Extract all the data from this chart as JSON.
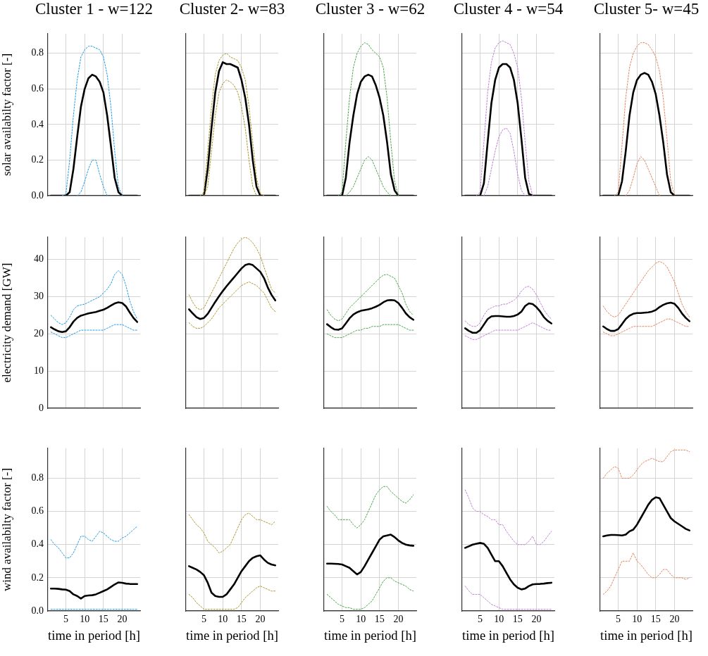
{
  "chart_data": [
    {
      "type": "line",
      "title": "Cluster 1 - w=122",
      "ylabel": "solar availabilty factor [-]",
      "x": [
        1,
        2,
        3,
        4,
        5,
        6,
        7,
        8,
        9,
        10,
        11,
        12,
        13,
        14,
        15,
        16,
        17,
        18,
        19,
        20,
        21,
        22,
        23,
        24
      ],
      "xlim": [
        0.2,
        24.8
      ],
      "xticks": [
        5,
        10,
        15,
        20
      ],
      "ylim": [
        0,
        0.91
      ],
      "yticks": [
        {
          "value": 0,
          "label": "0.0"
        },
        0.2,
        0.4,
        0.6,
        0.8
      ],
      "grid": true,
      "tick_labels": "y",
      "marker": "none",
      "series": [
        {
          "color": "#1e9be9",
          "line_style": "dotted",
          "values": [
            null,
            null,
            null,
            0,
            0.01,
            0.2,
            0.45,
            0.65,
            0.78,
            0.82,
            0.84,
            0.84,
            0.83,
            0.82,
            0.78,
            0.68,
            0.5,
            0.25,
            0.05,
            0,
            null,
            null,
            null,
            null
          ]
        },
        {
          "color": "#1e9be9",
          "line_style": "dotted",
          "values": [
            null,
            null,
            null,
            null,
            null,
            null,
            null,
            0,
            0.02,
            0.08,
            0.15,
            0.2,
            0.2,
            0.12,
            0.05,
            0,
            null,
            null,
            null,
            null,
            null,
            null,
            null,
            null
          ]
        },
        {
          "color": "#000000",
          "line_style": "solid",
          "values": [
            0,
            0,
            0,
            0,
            0,
            0.02,
            0.15,
            0.33,
            0.5,
            0.6,
            0.66,
            0.68,
            0.67,
            0.64,
            0.58,
            0.45,
            0.28,
            0.1,
            0.02,
            0,
            0,
            0,
            0,
            0
          ]
        }
      ]
    },
    {
      "type": "line",
      "title": "Cluster 2- w=83",
      "x": [
        1,
        2,
        3,
        4,
        5,
        6,
        7,
        8,
        9,
        10,
        11,
        12,
        13,
        14,
        15,
        16,
        17,
        18,
        19,
        20,
        21,
        22,
        23,
        24
      ],
      "xlim": [
        0.2,
        24.8
      ],
      "xticks": [
        5,
        10,
        15,
        20
      ],
      "ylim": [
        0,
        0.91
      ],
      "yticks": [
        0,
        0.2,
        0.4,
        0.6,
        0.8
      ],
      "grid": true,
      "tick_labels": false,
      "marker": "none",
      "series": [
        {
          "color": "#b0962a",
          "line_style": "dotted",
          "values": [
            null,
            null,
            null,
            0,
            0.02,
            0.25,
            0.5,
            0.68,
            0.76,
            0.79,
            0.8,
            0.78,
            0.77,
            0.76,
            0.72,
            0.65,
            0.5,
            0.3,
            0.1,
            0.01,
            0,
            null,
            null,
            null
          ]
        },
        {
          "color": "#b0962a",
          "line_style": "dotted",
          "values": [
            null,
            null,
            null,
            null,
            0,
            0.05,
            0.25,
            0.45,
            0.58,
            0.63,
            0.65,
            0.64,
            0.62,
            0.58,
            0.5,
            0.38,
            0.2,
            0.05,
            0,
            null,
            null,
            null,
            null,
            null
          ]
        },
        {
          "color": "#000000",
          "line_style": "solid",
          "values": [
            0,
            0,
            0,
            0,
            0,
            0.15,
            0.38,
            0.58,
            0.7,
            0.75,
            0.74,
            0.74,
            0.73,
            0.72,
            0.65,
            0.55,
            0.4,
            0.2,
            0.05,
            0,
            0,
            0,
            0,
            0
          ]
        }
      ]
    },
    {
      "type": "line",
      "title": "Cluster 3 - w=62",
      "x": [
        1,
        2,
        3,
        4,
        5,
        6,
        7,
        8,
        9,
        10,
        11,
        12,
        13,
        14,
        15,
        16,
        17,
        18,
        19,
        20,
        21,
        22,
        23,
        24
      ],
      "xlim": [
        0.2,
        24.8
      ],
      "xticks": [
        5,
        10,
        15,
        20
      ],
      "ylim": [
        0,
        0.91
      ],
      "yticks": [
        0,
        0.2,
        0.4,
        0.6,
        0.8
      ],
      "grid": true,
      "tick_labels": false,
      "marker": "none",
      "series": [
        {
          "color": "#4aa64a",
          "line_style": "dotted",
          "values": [
            null,
            null,
            null,
            0,
            0.02,
            0.3,
            0.55,
            0.72,
            0.8,
            0.84,
            0.86,
            0.85,
            0.82,
            0.8,
            0.78,
            0.72,
            0.55,
            0.3,
            0.08,
            0,
            null,
            null,
            null,
            null
          ]
        },
        {
          "color": "#4aa64a",
          "line_style": "dotted",
          "values": [
            null,
            null,
            null,
            null,
            null,
            0,
            0.02,
            0.05,
            0.1,
            0.15,
            0.2,
            0.22,
            0.2,
            0.15,
            0.1,
            0.05,
            0.02,
            0,
            null,
            null,
            null,
            null,
            null,
            null
          ]
        },
        {
          "color": "#000000",
          "line_style": "solid",
          "values": [
            0,
            0,
            0,
            0,
            0,
            0.1,
            0.3,
            0.45,
            0.57,
            0.64,
            0.67,
            0.68,
            0.67,
            0.62,
            0.55,
            0.45,
            0.3,
            0.12,
            0.03,
            0,
            0,
            0,
            0,
            0
          ]
        }
      ]
    },
    {
      "type": "line",
      "title": "Cluster 4 - w=54",
      "x": [
        1,
        2,
        3,
        4,
        5,
        6,
        7,
        8,
        9,
        10,
        11,
        12,
        13,
        14,
        15,
        16,
        17,
        18,
        19,
        20,
        21,
        22,
        23,
        24
      ],
      "xlim": [
        0.2,
        24.8
      ],
      "xticks": [
        5,
        10,
        15,
        20
      ],
      "ylim": [
        0,
        0.91
      ],
      "yticks": [
        0,
        0.2,
        0.4,
        0.6,
        0.8
      ],
      "grid": true,
      "tick_labels": false,
      "marker": "none",
      "series": [
        {
          "color": "#c07ed8",
          "line_style": "dotted",
          "values": [
            null,
            null,
            null,
            0,
            0.02,
            0.3,
            0.58,
            0.75,
            0.83,
            0.86,
            0.87,
            0.86,
            0.85,
            0.8,
            0.72,
            0.55,
            0.3,
            0.08,
            0,
            null,
            null,
            null,
            null,
            null
          ]
        },
        {
          "color": "#c07ed8",
          "line_style": "dotted",
          "values": [
            null,
            null,
            null,
            null,
            null,
            0,
            0.05,
            0.15,
            0.25,
            0.33,
            0.37,
            0.38,
            0.35,
            0.25,
            0.12,
            0.03,
            0,
            null,
            null,
            null,
            null,
            null,
            null,
            null
          ]
        },
        {
          "color": "#000000",
          "line_style": "solid",
          "values": [
            0,
            0,
            0,
            0,
            0,
            0.07,
            0.3,
            0.52,
            0.65,
            0.72,
            0.74,
            0.74,
            0.72,
            0.65,
            0.52,
            0.32,
            0.1,
            0.01,
            0,
            0,
            0,
            0,
            0,
            0
          ]
        }
      ]
    },
    {
      "type": "line",
      "title": "Cluster 5- w=45",
      "x": [
        1,
        2,
        3,
        4,
        5,
        6,
        7,
        8,
        9,
        10,
        11,
        12,
        13,
        14,
        15,
        16,
        17,
        18,
        19,
        20,
        21,
        22,
        23,
        24
      ],
      "xlim": [
        0.2,
        24.8
      ],
      "xticks": [
        5,
        10,
        15,
        20
      ],
      "ylim": [
        0,
        0.91
      ],
      "yticks": [
        0,
        0.2,
        0.4,
        0.6,
        0.8
      ],
      "grid": true,
      "tick_labels": false,
      "marker": "none",
      "series": [
        {
          "color": "#e8825a",
          "line_style": "dotted",
          "values": [
            null,
            null,
            null,
            0,
            0.02,
            0.28,
            0.55,
            0.72,
            0.8,
            0.84,
            0.86,
            0.86,
            0.85,
            0.82,
            0.78,
            0.7,
            0.55,
            0.32,
            0.08,
            0,
            null,
            null,
            null,
            null
          ]
        },
        {
          "color": "#e8825a",
          "line_style": "dotted",
          "values": [
            null,
            null,
            null,
            null,
            null,
            null,
            0,
            0.03,
            0.1,
            0.18,
            0.22,
            0.2,
            0.15,
            0.1,
            0.05,
            0,
            null,
            null,
            null,
            null,
            null,
            null,
            null,
            null
          ]
        },
        {
          "color": "#000000",
          "line_style": "solid",
          "values": [
            0,
            0,
            0,
            0,
            0,
            0.08,
            0.25,
            0.45,
            0.58,
            0.65,
            0.68,
            0.69,
            0.68,
            0.64,
            0.57,
            0.45,
            0.3,
            0.12,
            0.02,
            0,
            0,
            0,
            0,
            0
          ]
        }
      ]
    },
    {
      "type": "line",
      "ylabel": "electricity demand [GW]",
      "x": [
        1,
        2,
        3,
        4,
        5,
        6,
        7,
        8,
        9,
        10,
        11,
        12,
        13,
        14,
        15,
        16,
        17,
        18,
        19,
        20,
        21,
        22,
        23,
        24
      ],
      "xlim": [
        0.2,
        24.8
      ],
      "xticks": [
        5,
        10,
        15,
        20
      ],
      "ylim": [
        0,
        46
      ],
      "yticks": [
        0,
        10,
        20,
        30,
        40
      ],
      "grid": true,
      "tick_labels": "y",
      "marker": "none",
      "series": [
        {
          "color": "#1e9be9",
          "line_style": "dotted",
          "values": [
            25,
            24,
            23,
            22.5,
            23,
            24.5,
            26.5,
            27.5,
            27.8,
            28,
            28.5,
            29,
            29.5,
            30,
            31,
            32,
            33.5,
            36,
            37,
            36,
            33,
            29,
            26,
            24
          ]
        },
        {
          "color": "#1e9be9",
          "line_style": "dotted",
          "values": [
            20.5,
            20,
            19.5,
            19,
            19,
            19.5,
            20,
            20.5,
            21,
            21,
            21,
            21,
            21,
            21,
            21,
            21.5,
            22,
            22.5,
            22.5,
            22.5,
            22,
            21.5,
            21,
            21
          ]
        },
        {
          "color": "#000000",
          "line_style": "solid",
          "values": [
            21.8,
            21.2,
            20.7,
            20.5,
            20.7,
            21.8,
            23.3,
            24.3,
            24.9,
            25.2,
            25.5,
            25.7,
            25.9,
            26.2,
            26.5,
            27,
            27.6,
            28.2,
            28.5,
            28.3,
            27.4,
            25.8,
            24.3,
            23.2
          ]
        }
      ]
    },
    {
      "type": "line",
      "x": [
        1,
        2,
        3,
        4,
        5,
        6,
        7,
        8,
        9,
        10,
        11,
        12,
        13,
        14,
        15,
        16,
        17,
        18,
        19,
        20,
        21,
        22,
        23,
        24
      ],
      "xlim": [
        0.2,
        24.8
      ],
      "xticks": [
        5,
        10,
        15,
        20
      ],
      "ylim": [
        0,
        46
      ],
      "yticks": [
        0,
        10,
        20,
        30,
        40
      ],
      "grid": true,
      "tick_labels": false,
      "marker": "none",
      "series": [
        {
          "color": "#b0962a",
          "line_style": "dotted",
          "values": [
            30.5,
            28.5,
            27,
            26.5,
            27,
            29,
            31,
            33,
            35,
            37,
            39,
            41,
            43,
            44.5,
            45.5,
            46,
            45.5,
            44.5,
            43,
            41,
            38,
            35,
            32,
            31
          ]
        },
        {
          "color": "#b0962a",
          "line_style": "dotted",
          "values": [
            23,
            22,
            21.5,
            21.5,
            22,
            23,
            24,
            25.5,
            27,
            28,
            29,
            30,
            31,
            32,
            33,
            33.5,
            34,
            33.5,
            33,
            32,
            31,
            29,
            27,
            26
          ]
        },
        {
          "color": "#000000",
          "line_style": "solid",
          "values": [
            26.6,
            25.5,
            24.5,
            24,
            24.3,
            25.4,
            27,
            28.6,
            30.1,
            31.5,
            32.8,
            34,
            35.2,
            36.4,
            37.6,
            38.5,
            38.8,
            38.5,
            37.6,
            36.7,
            35,
            32.5,
            30.5,
            29
          ]
        }
      ]
    },
    {
      "type": "line",
      "x": [
        1,
        2,
        3,
        4,
        5,
        6,
        7,
        8,
        9,
        10,
        11,
        12,
        13,
        14,
        15,
        16,
        17,
        18,
        19,
        20,
        21,
        22,
        23,
        24
      ],
      "xlim": [
        0.2,
        24.8
      ],
      "xticks": [
        5,
        10,
        15,
        20
      ],
      "ylim": [
        0,
        46
      ],
      "yticks": [
        0,
        10,
        20,
        30,
        40
      ],
      "grid": true,
      "tick_labels": false,
      "marker": "none",
      "series": [
        {
          "color": "#4aa64a",
          "line_style": "dotted",
          "values": [
            26.5,
            25,
            24,
            23.5,
            24,
            25.5,
            27,
            28,
            29,
            30,
            31,
            32,
            33,
            34,
            35,
            35.8,
            36,
            35.5,
            35,
            33,
            31,
            28,
            26,
            25
          ]
        },
        {
          "color": "#4aa64a",
          "line_style": "dotted",
          "values": [
            20,
            19.5,
            19,
            19,
            19,
            19.5,
            20,
            20.5,
            21,
            21,
            21.5,
            21.5,
            22,
            22,
            22,
            22.5,
            22.5,
            22.5,
            22.5,
            22.5,
            22,
            21.5,
            21,
            21
          ]
        },
        {
          "color": "#000000",
          "line_style": "solid",
          "values": [
            22.6,
            21.8,
            21.2,
            21.1,
            21.5,
            22.8,
            24.2,
            25.2,
            25.8,
            26.2,
            26.4,
            26.6,
            26.9,
            27.3,
            27.8,
            28.5,
            29,
            29.1,
            29,
            28.3,
            27,
            25.5,
            24.5,
            23.8
          ]
        }
      ]
    },
    {
      "type": "line",
      "x": [
        1,
        2,
        3,
        4,
        5,
        6,
        7,
        8,
        9,
        10,
        11,
        12,
        13,
        14,
        15,
        16,
        17,
        18,
        19,
        20,
        21,
        22,
        23,
        24
      ],
      "xlim": [
        0.2,
        24.8
      ],
      "xticks": [
        5,
        10,
        15,
        20
      ],
      "ylim": [
        0,
        46
      ],
      "yticks": [
        0,
        10,
        20,
        30,
        40
      ],
      "grid": true,
      "tick_labels": false,
      "marker": "none",
      "series": [
        {
          "color": "#c07ed8",
          "line_style": "dotted",
          "values": [
            23.5,
            22.5,
            22,
            22,
            23,
            25,
            26.5,
            27,
            27.5,
            27.5,
            28,
            28,
            28.5,
            29,
            30,
            31.5,
            32.5,
            32.8,
            32,
            30.5,
            28.5,
            26.5,
            25,
            24
          ]
        },
        {
          "color": "#c07ed8",
          "line_style": "dotted",
          "values": [
            19.5,
            19,
            18.5,
            18.5,
            19,
            19.5,
            20,
            20.5,
            21,
            21,
            21,
            21,
            21,
            21,
            21,
            21.5,
            22,
            22.5,
            23,
            22.5,
            22,
            21.5,
            21,
            21
          ]
        },
        {
          "color": "#000000",
          "line_style": "solid",
          "values": [
            21.5,
            20.8,
            20.3,
            20.3,
            21,
            22.5,
            24,
            24.7,
            24.8,
            24.8,
            24.7,
            24.6,
            24.6,
            24.8,
            25.2,
            26,
            27.5,
            28.2,
            28,
            27.2,
            26,
            24.5,
            23.5,
            22.8
          ]
        }
      ]
    },
    {
      "type": "line",
      "x": [
        1,
        2,
        3,
        4,
        5,
        6,
        7,
        8,
        9,
        10,
        11,
        12,
        13,
        14,
        15,
        16,
        17,
        18,
        19,
        20,
        21,
        22,
        23,
        24
      ],
      "xlim": [
        0.2,
        24.8
      ],
      "xticks": [
        5,
        10,
        15,
        20
      ],
      "ylim": [
        0,
        46
      ],
      "yticks": [
        0,
        10,
        20,
        30,
        40
      ],
      "grid": true,
      "tick_labels": false,
      "marker": "none",
      "series": [
        {
          "color": "#e8825a",
          "line_style": "dotted",
          "values": [
            27.5,
            26,
            25,
            24.5,
            25,
            26.5,
            28,
            29.5,
            31,
            32.5,
            34,
            35.5,
            37,
            38,
            39,
            39.5,
            39,
            38,
            36,
            34,
            31,
            28,
            26,
            24.5
          ]
        },
        {
          "color": "#e8825a",
          "line_style": "dotted",
          "values": [
            20.5,
            20,
            19.5,
            19.5,
            20,
            20.5,
            21,
            21.5,
            22,
            22,
            22,
            22,
            22,
            22,
            22.5,
            23,
            23.5,
            24,
            24,
            23.5,
            23,
            22.5,
            22,
            22
          ]
        },
        {
          "color": "#000000",
          "line_style": "solid",
          "values": [
            22,
            21.3,
            20.8,
            20.8,
            21.3,
            22.6,
            24,
            24.9,
            25.4,
            25.6,
            25.6,
            25.7,
            25.8,
            26,
            26.4,
            27.2,
            27.8,
            28.2,
            28.4,
            28.1,
            27,
            25.5,
            24.3,
            23.4
          ]
        }
      ]
    },
    {
      "type": "line",
      "ylabel": "wind availabilty factor [-]",
      "xlabel": "time in period [h]",
      "x": [
        1,
        2,
        3,
        4,
        5,
        6,
        7,
        8,
        9,
        10,
        11,
        12,
        13,
        14,
        15,
        16,
        17,
        18,
        19,
        20,
        21,
        22,
        23,
        24
      ],
      "xlim": [
        0.2,
        24.8
      ],
      "xticks": [
        5,
        10,
        15,
        20
      ],
      "ylim": [
        0,
        0.98
      ],
      "yticks": [
        {
          "value": 0,
          "label": "0.0"
        },
        0.2,
        0.4,
        0.6,
        0.8
      ],
      "grid": true,
      "marker": "none",
      "series": [
        {
          "color": "#1e9be9",
          "line_style": "dotted",
          "values": [
            0.43,
            0.4,
            0.38,
            0.35,
            0.32,
            0.32,
            0.35,
            0.4,
            0.45,
            0.45,
            0.43,
            0.42,
            0.45,
            0.48,
            0.47,
            0.45,
            0.43,
            0.42,
            0.42,
            0.44,
            0.45,
            0.47,
            0.49,
            0.51
          ]
        },
        {
          "color": "#1e9be9",
          "line_style": "dotted",
          "values": [
            0.01,
            0.01,
            0.01,
            0.01,
            0.01,
            0.01,
            0.01,
            0.01,
            0.01,
            0.01,
            0.01,
            0.01,
            0.01,
            0.01,
            0.01,
            0.01,
            0.01,
            0.01,
            0.01,
            0.01,
            0.01,
            0.01,
            0.01,
            0.01
          ]
        },
        {
          "color": "#000000",
          "line_style": "solid",
          "values": [
            0.135,
            0.135,
            0.133,
            0.13,
            0.128,
            0.12,
            0.1,
            0.09,
            0.075,
            0.09,
            0.093,
            0.095,
            0.1,
            0.11,
            0.12,
            0.13,
            0.145,
            0.16,
            0.172,
            0.17,
            0.165,
            0.163,
            0.162,
            0.162
          ]
        }
      ]
    },
    {
      "type": "line",
      "xlabel": "time in period [h]",
      "x": [
        1,
        2,
        3,
        4,
        5,
        6,
        7,
        8,
        9,
        10,
        11,
        12,
        13,
        14,
        15,
        16,
        17,
        18,
        19,
        20,
        21,
        22,
        23,
        24
      ],
      "xlim": [
        0.2,
        24.8
      ],
      "xticks": [
        5,
        10,
        15,
        20
      ],
      "ylim": [
        0,
        0.98
      ],
      "yticks": [
        0,
        0.2,
        0.4,
        0.6,
        0.8
      ],
      "grid": true,
      "tick_labels": "x",
      "marker": "none",
      "series": [
        {
          "color": "#b0962a",
          "line_style": "dotted",
          "values": [
            0.58,
            0.55,
            0.52,
            0.5,
            0.47,
            0.42,
            0.4,
            0.38,
            0.35,
            0.36,
            0.38,
            0.4,
            0.45,
            0.5,
            0.55,
            0.58,
            0.59,
            0.57,
            0.55,
            0.55,
            0.54,
            0.53,
            0.52,
            0.54
          ]
        },
        {
          "color": "#b0962a",
          "line_style": "dotted",
          "values": [
            0.1,
            0.08,
            0.05,
            0.03,
            0.01,
            0.01,
            0.01,
            0.01,
            0.01,
            0.01,
            0.01,
            0.01,
            0.01,
            0.02,
            0.05,
            0.08,
            0.1,
            0.12,
            0.14,
            0.15,
            0.14,
            0.13,
            0.12,
            0.12
          ]
        },
        {
          "color": "#000000",
          "line_style": "solid",
          "values": [
            0.27,
            0.26,
            0.25,
            0.235,
            0.215,
            0.17,
            0.11,
            0.09,
            0.085,
            0.085,
            0.1,
            0.13,
            0.16,
            0.2,
            0.24,
            0.27,
            0.3,
            0.32,
            0.33,
            0.335,
            0.31,
            0.29,
            0.28,
            0.275
          ]
        }
      ]
    },
    {
      "type": "line",
      "xlabel": "time in period [h]",
      "x": [
        1,
        2,
        3,
        4,
        5,
        6,
        7,
        8,
        9,
        10,
        11,
        12,
        13,
        14,
        15,
        16,
        17,
        18,
        19,
        20,
        21,
        22,
        23,
        24
      ],
      "xlim": [
        0.2,
        24.8
      ],
      "xticks": [
        5,
        10,
        15,
        20
      ],
      "ylim": [
        0,
        0.98
      ],
      "yticks": [
        0,
        0.2,
        0.4,
        0.6,
        0.8
      ],
      "grid": true,
      "tick_labels": "x",
      "marker": "none",
      "series": [
        {
          "color": "#4aa64a",
          "line_style": "dotted",
          "values": [
            0.63,
            0.6,
            0.58,
            0.55,
            0.55,
            0.55,
            0.55,
            0.52,
            0.5,
            0.52,
            0.55,
            0.6,
            0.65,
            0.7,
            0.73,
            0.75,
            0.75,
            0.72,
            0.7,
            0.68,
            0.66,
            0.65,
            0.67,
            0.7
          ]
        },
        {
          "color": "#4aa64a",
          "line_style": "dotted",
          "values": [
            0.1,
            0.08,
            0.06,
            0.04,
            0.03,
            0.02,
            0.02,
            0.01,
            0.01,
            0.01,
            0.02,
            0.04,
            0.06,
            0.1,
            0.14,
            0.18,
            0.2,
            0.2,
            0.18,
            0.17,
            0.16,
            0.15,
            0.13,
            0.12
          ]
        },
        {
          "color": "#000000",
          "line_style": "solid",
          "values": [
            0.285,
            0.285,
            0.284,
            0.283,
            0.28,
            0.27,
            0.26,
            0.24,
            0.22,
            0.235,
            0.27,
            0.31,
            0.35,
            0.39,
            0.43,
            0.45,
            0.455,
            0.46,
            0.445,
            0.425,
            0.41,
            0.4,
            0.395,
            0.393
          ]
        }
      ]
    },
    {
      "type": "line",
      "xlabel": "time in period [h]",
      "x": [
        1,
        2,
        3,
        4,
        5,
        6,
        7,
        8,
        9,
        10,
        11,
        12,
        13,
        14,
        15,
        16,
        17,
        18,
        19,
        20,
        21,
        22,
        23,
        24
      ],
      "xlim": [
        0.2,
        24.8
      ],
      "xticks": [
        5,
        10,
        15,
        20
      ],
      "ylim": [
        0,
        0.98
      ],
      "yticks": [
        0,
        0.2,
        0.4,
        0.6,
        0.8
      ],
      "grid": true,
      "tick_labels": "x",
      "marker": "none",
      "series": [
        {
          "color": "#c07ed8",
          "line_style": "dotted",
          "values": [
            0.73,
            0.68,
            0.62,
            0.6,
            0.6,
            0.58,
            0.57,
            0.55,
            0.55,
            0.52,
            0.52,
            0.48,
            0.45,
            0.42,
            0.4,
            0.4,
            0.4,
            0.42,
            0.45,
            0.4,
            0.4,
            0.42,
            0.45,
            0.48
          ]
        },
        {
          "color": "#c07ed8",
          "line_style": "dotted",
          "values": [
            0.15,
            0.12,
            0.1,
            0.1,
            0.1,
            0.08,
            0.06,
            0.04,
            0.03,
            0.02,
            0.01,
            0.01,
            0.01,
            0.01,
            0.01,
            0.01,
            0.01,
            0.01,
            0.01,
            0.01,
            0.01,
            0.01,
            0.01,
            0.01
          ]
        },
        {
          "color": "#000000",
          "line_style": "solid",
          "values": [
            0.38,
            0.39,
            0.4,
            0.405,
            0.41,
            0.405,
            0.38,
            0.34,
            0.3,
            0.3,
            0.27,
            0.23,
            0.19,
            0.16,
            0.14,
            0.13,
            0.135,
            0.15,
            0.16,
            0.162,
            0.163,
            0.165,
            0.168,
            0.17
          ]
        }
      ]
    },
    {
      "type": "line",
      "xlabel": "time in period [h]",
      "x": [
        1,
        2,
        3,
        4,
        5,
        6,
        7,
        8,
        9,
        10,
        11,
        12,
        13,
        14,
        15,
        16,
        17,
        18,
        19,
        20,
        21,
        22,
        23,
        24
      ],
      "xlim": [
        0.2,
        24.8
      ],
      "xticks": [
        5,
        10,
        15,
        20
      ],
      "ylim": [
        0,
        0.98
      ],
      "yticks": [
        0,
        0.2,
        0.4,
        0.6,
        0.8
      ],
      "grid": true,
      "tick_labels": "x",
      "marker": "none",
      "series": [
        {
          "color": "#e8825a",
          "line_style": "dotted",
          "values": [
            0.8,
            0.83,
            0.85,
            0.87,
            0.86,
            0.8,
            0.8,
            0.8,
            0.82,
            0.85,
            0.88,
            0.9,
            0.91,
            0.92,
            0.91,
            0.9,
            0.9,
            0.93,
            0.96,
            0.97,
            0.97,
            0.97,
            0.97,
            0.96
          ]
        },
        {
          "color": "#e8825a",
          "line_style": "dotted",
          "values": [
            0.1,
            0.12,
            0.15,
            0.2,
            0.25,
            0.3,
            0.3,
            0.3,
            0.35,
            0.3,
            0.28,
            0.25,
            0.22,
            0.2,
            0.2,
            0.22,
            0.25,
            0.25,
            0.22,
            0.2,
            0.2,
            0.2,
            0.19,
            0.2
          ]
        },
        {
          "color": "#000000",
          "line_style": "solid",
          "values": [
            0.45,
            0.455,
            0.458,
            0.458,
            0.457,
            0.455,
            0.46,
            0.48,
            0.49,
            0.52,
            0.56,
            0.6,
            0.64,
            0.67,
            0.685,
            0.68,
            0.64,
            0.6,
            0.56,
            0.54,
            0.525,
            0.51,
            0.495,
            0.485
          ]
        }
      ]
    }
  ]
}
